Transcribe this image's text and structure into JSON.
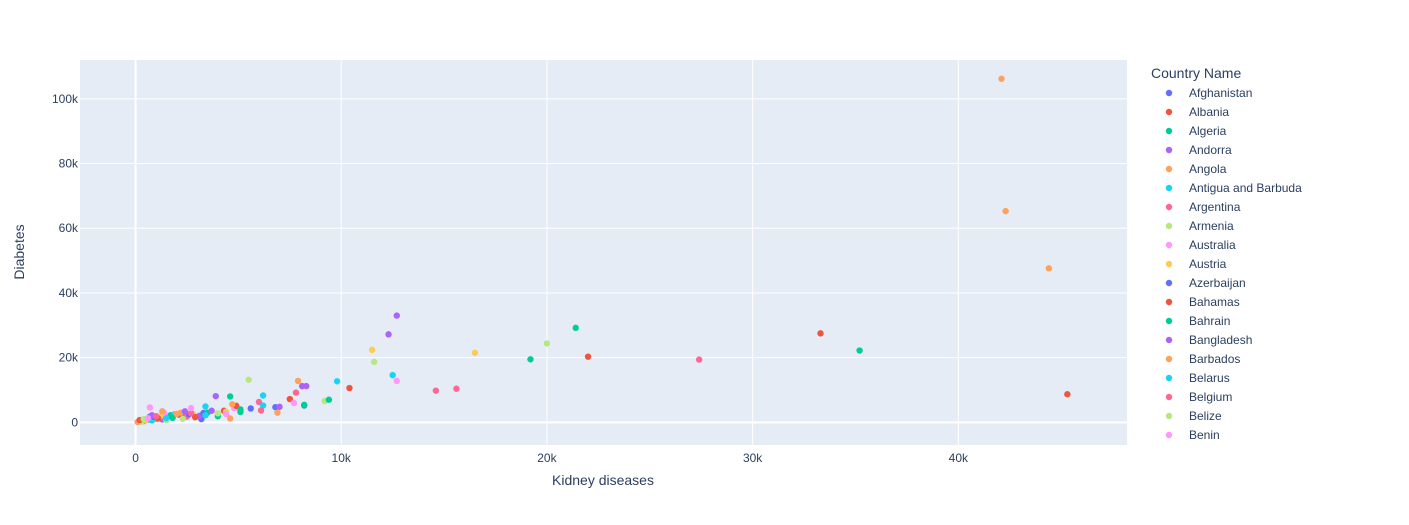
{
  "chart_data": {
    "type": "scatter",
    "xlabel": "Kidney diseases",
    "ylabel": "Diabetes",
    "xlim": [
      -2700,
      48200
    ],
    "ylim": [
      -7000,
      112000
    ],
    "x_ticks": [
      0,
      10000,
      20000,
      30000,
      40000
    ],
    "x_tick_labels": [
      "0",
      "10k",
      "20k",
      "30k",
      "40k"
    ],
    "y_ticks": [
      0,
      20000,
      40000,
      60000,
      80000,
      100000
    ],
    "y_tick_labels": [
      "0",
      "20k",
      "40k",
      "60k",
      "80k",
      "100k"
    ],
    "grid": true,
    "plot_bgcolor": "#E5ECF6",
    "legend": {
      "title": "Country Name",
      "placement": "right"
    },
    "series": [
      {
        "name": "Afghanistan",
        "color": "#636EFA",
        "points": [
          [
            300,
            500
          ],
          [
            700,
            1800
          ],
          [
            1200,
            1500
          ],
          [
            2100,
            2400
          ],
          [
            3200,
            1000
          ],
          [
            6800,
            4700
          ],
          [
            8200,
            5200
          ]
        ]
      },
      {
        "name": "Albania",
        "color": "#EF553B",
        "points": [
          [
            200,
            300
          ],
          [
            900,
            1500
          ],
          [
            2300,
            2100
          ],
          [
            4300,
            3600
          ],
          [
            7500,
            7200
          ],
          [
            10400,
            10600
          ],
          [
            22000,
            20300
          ],
          [
            33300,
            27500
          ],
          [
            45300,
            8700
          ]
        ]
      },
      {
        "name": "Algeria",
        "color": "#00CC96",
        "points": [
          [
            600,
            800
          ],
          [
            1700,
            2200
          ],
          [
            4000,
            1900
          ],
          [
            4600,
            8000
          ],
          [
            5100,
            3200
          ],
          [
            8200,
            5400
          ],
          [
            19200,
            19500
          ],
          [
            21400,
            29200
          ],
          [
            35200,
            22200
          ]
        ]
      },
      {
        "name": "Andorra",
        "color": "#AB63FA",
        "points": [
          [
            400,
            400
          ],
          [
            1300,
            900
          ],
          [
            3100,
            2000
          ],
          [
            3900,
            8100
          ],
          [
            7000,
            4800
          ],
          [
            8300,
            11200
          ],
          [
            12300,
            27200
          ],
          [
            12700,
            33000
          ]
        ]
      },
      {
        "name": "Angola",
        "color": "#FFA15A",
        "points": [
          [
            100,
            100
          ],
          [
            1000,
            1000
          ],
          [
            2200,
            3000
          ],
          [
            4600,
            1200
          ],
          [
            6900,
            3000
          ],
          [
            42100,
            106200
          ],
          [
            42300,
            65300
          ],
          [
            44400,
            47600
          ]
        ]
      },
      {
        "name": "Antigua and Barbuda",
        "color": "#19D3F3",
        "points": [
          [
            800,
            600
          ],
          [
            1900,
            2500
          ],
          [
            3400,
            4900
          ],
          [
            6200,
            8300
          ],
          [
            9800,
            12700
          ],
          [
            12500,
            14600
          ]
        ]
      },
      {
        "name": "Argentina",
        "color": "#FF6692",
        "points": [
          [
            500,
            900
          ],
          [
            2500,
            1800
          ],
          [
            6000,
            6300
          ],
          [
            7800,
            9200
          ],
          [
            14600,
            9800
          ],
          [
            15600,
            10400
          ],
          [
            27400,
            19400
          ]
        ]
      },
      {
        "name": "Armenia",
        "color": "#B6E880",
        "points": [
          [
            300,
            200
          ],
          [
            1500,
            700
          ],
          [
            5500,
            13200
          ],
          [
            9200,
            6600
          ],
          [
            11600,
            18700
          ],
          [
            20000,
            24400
          ]
        ]
      },
      {
        "name": "Australia",
        "color": "#FF97FF",
        "points": [
          [
            700,
            4600
          ],
          [
            1400,
            2900
          ],
          [
            4800,
            4400
          ],
          [
            7700,
            6000
          ],
          [
            12700,
            12800
          ]
        ]
      },
      {
        "name": "Austria",
        "color": "#FECB52",
        "points": [
          [
            500,
            600
          ],
          [
            1200,
            1800
          ],
          [
            2800,
            2600
          ],
          [
            4400,
            3300
          ],
          [
            11500,
            22400
          ],
          [
            16500,
            21500
          ]
        ]
      },
      {
        "name": "Azerbaijan",
        "color": "#636EFA",
        "points": [
          [
            900,
            1700
          ],
          [
            2600,
            2500
          ],
          [
            3300,
            2900
          ],
          [
            5600,
            4300
          ]
        ]
      },
      {
        "name": "Bahamas",
        "color": "#EF553B",
        "points": [
          [
            200,
            700
          ],
          [
            1100,
            1200
          ],
          [
            2900,
            1600
          ],
          [
            4900,
            5100
          ]
        ]
      },
      {
        "name": "Bahrain",
        "color": "#00CC96",
        "points": [
          [
            1800,
            1400
          ],
          [
            3500,
            3000
          ],
          [
            5100,
            4000
          ],
          [
            9400,
            7000
          ]
        ]
      },
      {
        "name": "Bangladesh",
        "color": "#AB63FA",
        "points": [
          [
            800,
            2200
          ],
          [
            2400,
            3400
          ],
          [
            3700,
            3600
          ],
          [
            8100,
            11200
          ]
        ]
      },
      {
        "name": "Barbados",
        "color": "#FFA15A",
        "points": [
          [
            1300,
            3400
          ],
          [
            2000,
            2600
          ],
          [
            4700,
            5600
          ],
          [
            7900,
            12800
          ]
        ]
      },
      {
        "name": "Belarus",
        "color": "#19D3F3",
        "points": [
          [
            1500,
            1300
          ],
          [
            3400,
            2200
          ],
          [
            6200,
            5200
          ]
        ]
      },
      {
        "name": "Belgium",
        "color": "#FF6692",
        "points": [
          [
            1000,
            1900
          ],
          [
            2700,
            2800
          ],
          [
            6100,
            3700
          ]
        ]
      },
      {
        "name": "Belize",
        "color": "#B6E880",
        "points": [
          [
            400,
            1000
          ],
          [
            2300,
            1100
          ],
          [
            4000,
            2800
          ]
        ]
      },
      {
        "name": "Benin",
        "color": "#FF97FF",
        "points": [
          [
            600,
            1300
          ],
          [
            2700,
            4400
          ],
          [
            4400,
            2600
          ]
        ]
      }
    ]
  }
}
